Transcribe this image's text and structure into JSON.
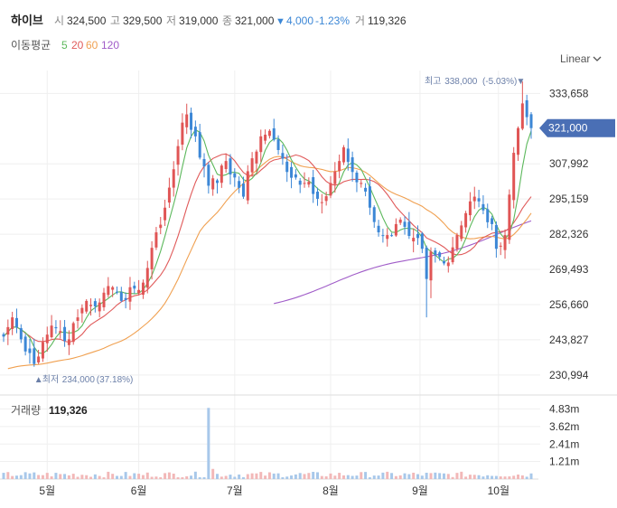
{
  "header": {
    "name": "하이브",
    "open_label": "시",
    "open": "324,500",
    "high_label": "고",
    "high": "329,500",
    "low_label": "저",
    "low": "319,000",
    "close_label": "종",
    "close": "321,000",
    "change_arrow": "▼",
    "change": "4,000",
    "change_pct": "-1.23%",
    "volume_label": "거",
    "volume": "119,326"
  },
  "ma_legend": {
    "label": "이동평균",
    "items": [
      {
        "period": "5",
        "color": "#5cb85c"
      },
      {
        "period": "20",
        "color": "#e05a5a"
      },
      {
        "period": "60",
        "color": "#f0a050"
      },
      {
        "period": "120",
        "color": "#a05cc8"
      }
    ]
  },
  "scale_selector": {
    "label": "Linear",
    "chevron": "chevron-down-icon"
  },
  "annotations": {
    "max": {
      "label": "최고",
      "value": "338,000",
      "pct": "(-5.03%)",
      "arrow": "▼"
    },
    "min": {
      "label": "최저",
      "value": "234,000",
      "pct": "(37.18%)",
      "arrow": "▲"
    }
  },
  "current_price_tag": "321,000",
  "volume_header": {
    "label": "거래량",
    "value": "119,326"
  },
  "colors": {
    "up": "#e05555",
    "down": "#3c87d6",
    "volume_up": "#f2b8b8",
    "volume_down": "#a8c8ea",
    "grid": "#efefef",
    "tag": "#4a6fb5"
  },
  "chart_data": {
    "type": "candlestick",
    "x_ticks": [
      "5월",
      "6월",
      "7월",
      "8월",
      "9월",
      "10월"
    ],
    "y_ticks": [
      "333,658",
      "307,992",
      "295,159",
      "282,326",
      "269,493",
      "256,660",
      "243,827",
      "230,994"
    ],
    "y_tick_values": [
      333658,
      307992,
      295159,
      282326,
      269493,
      256660,
      243827,
      230994
    ],
    "ylim": [
      226000,
      342000
    ],
    "volume_ticks": [
      "4.83m",
      "3.62m",
      "2.41m",
      "1.21m"
    ],
    "volume_tick_values": [
      4830000,
      3620000,
      2410000,
      1210000
    ],
    "volume_ylim": [
      0,
      5600000
    ],
    "months": [
      {
        "label": "5월",
        "start": 0,
        "len": 20
      },
      {
        "label": "6월",
        "start": 20,
        "len": 22
      },
      {
        "label": "7월",
        "start": 42,
        "len": 22
      },
      {
        "label": "8월",
        "start": 64,
        "len": 22
      },
      {
        "label": "9월",
        "start": 86,
        "len": 19
      },
      {
        "label": "10월",
        "start": 105,
        "len": 17
      }
    ],
    "close_anchors": [
      [
        0,
        245000
      ],
      [
        2,
        252000
      ],
      [
        4,
        244000
      ],
      [
        6,
        239000
      ],
      [
        7,
        235000
      ],
      [
        9,
        243000
      ],
      [
        11,
        249000
      ],
      [
        13,
        247000
      ],
      [
        15,
        244000
      ],
      [
        17,
        252000
      ],
      [
        19,
        258000
      ],
      [
        21,
        256000
      ],
      [
        23,
        261000
      ],
      [
        25,
        263000
      ],
      [
        27,
        258000
      ],
      [
        29,
        263000
      ],
      [
        31,
        262000
      ],
      [
        33,
        270000
      ],
      [
        35,
        283000
      ],
      [
        37,
        292000
      ],
      [
        39,
        306000
      ],
      [
        41,
        323000
      ],
      [
        42,
        326000
      ],
      [
        44,
        318000
      ],
      [
        46,
        307000
      ],
      [
        47,
        300000
      ],
      [
        49,
        301000
      ],
      [
        51,
        309000
      ],
      [
        53,
        303000
      ],
      [
        55,
        296000
      ],
      [
        57,
        310000
      ],
      [
        59,
        318000
      ],
      [
        61,
        320000
      ],
      [
        63,
        313000
      ],
      [
        65,
        305000
      ],
      [
        67,
        303000
      ],
      [
        69,
        301000
      ],
      [
        71,
        297000
      ],
      [
        73,
        294000
      ],
      [
        75,
        301000
      ],
      [
        77,
        309000
      ],
      [
        78,
        314000
      ],
      [
        80,
        305000
      ],
      [
        82,
        301000
      ],
      [
        84,
        292000
      ],
      [
        86,
        283000
      ],
      [
        88,
        282000
      ],
      [
        90,
        286000
      ],
      [
        92,
        285000
      ],
      [
        94,
        281000
      ],
      [
        96,
        277000
      ],
      [
        97,
        266000
      ],
      [
        98,
        276000
      ],
      [
        100,
        274000
      ],
      [
        102,
        272000
      ],
      [
        104,
        282000
      ],
      [
        106,
        290000
      ],
      [
        108,
        296000
      ],
      [
        110,
        291000
      ],
      [
        112,
        286000
      ],
      [
        113,
        277000
      ],
      [
        115,
        282000
      ],
      [
        117,
        312000
      ],
      [
        118,
        321000
      ],
      [
        119,
        330000
      ],
      [
        120,
        325000
      ],
      [
        121,
        321000
      ]
    ],
    "ma_end_values": {
      "5": 320000,
      "20": 296000,
      "60": 290000,
      "120": 286000
    },
    "ma120_start_index": 62,
    "max_point": {
      "index": 119,
      "value": 338000
    },
    "min_point": {
      "index": 7,
      "value": 234000
    },
    "volume_spike": {
      "index": 47,
      "value": 4900000
    },
    "avg_volume": 300000
  }
}
